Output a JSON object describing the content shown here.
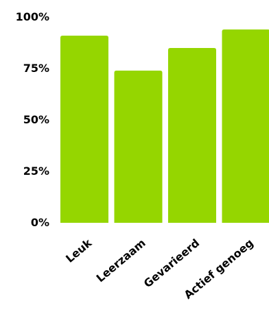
{
  "chart_data": {
    "type": "bar",
    "categories": [
      "Leuk",
      "Leerzaam",
      "Gevarieerd",
      "Actief genoeg"
    ],
    "values": [
      91,
      74,
      85,
      94
    ],
    "ylim": [
      0,
      100
    ],
    "yticks": [
      "0%",
      "25%",
      "50%",
      "75%",
      "100%"
    ],
    "ytick_values": [
      0,
      25,
      50,
      75,
      100
    ],
    "bar_color": "#95d600",
    "grid": false,
    "legend": "none"
  }
}
